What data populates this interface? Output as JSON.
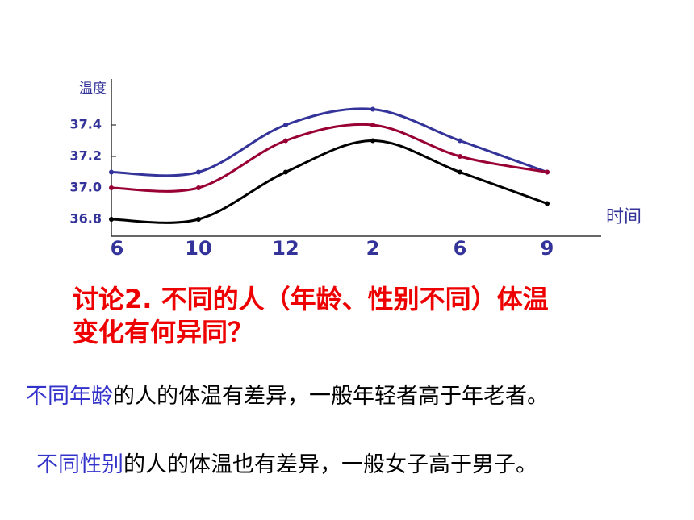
{
  "chart_data": {
    "type": "line",
    "x_label": "时间",
    "y_label": "温度",
    "categories": [
      "6",
      "10",
      "12",
      "2",
      "6",
      "9"
    ],
    "series": [
      {
        "color": "#333399",
        "values": [
          37.1,
          37.1,
          37.4,
          37.5,
          37.3,
          37.1
        ]
      },
      {
        "color": "#990033",
        "values": [
          37.0,
          37.0,
          37.3,
          37.4,
          37.2,
          37.1
        ]
      },
      {
        "color": "#000000",
        "values": [
          36.8,
          36.8,
          37.1,
          37.3,
          37.1,
          36.9
        ]
      }
    ],
    "ylim": [
      36.7,
      37.7
    ],
    "yticks": [
      36.8,
      {
        "value": 37,
        "label": "37.0"
      },
      37.2,
      37.4
    ]
  },
  "question": [
    "讨论2. 不同的人（年龄、性别不同）体温",
    "变化有何异同？"
  ],
  "answers": [
    {
      "highlight": "不同年龄",
      "rest": "的人的体温有差异，一般年轻者高于年老者。"
    },
    {
      "highlight": "不同性别",
      "rest": "的人的体温也有差异，一般女子高于男子。"
    }
  ]
}
